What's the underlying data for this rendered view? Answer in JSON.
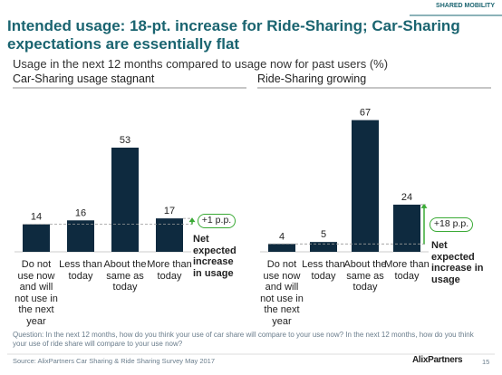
{
  "header": {
    "section": "SHARED MOBILITY",
    "title": "Intended usage: 18-pt. increase for Ride-Sharing; Car-Sharing expectations are essentially flat",
    "subtitle": "Usage in the next 12 months compared to usage now for past users (%)"
  },
  "chart_data": [
    {
      "type": "bar",
      "title": "Car-Sharing usage stagnant",
      "categories": [
        "Do not use now and will not use in the next year",
        "Less than today",
        "About the same as today",
        "More than today"
      ],
      "values": [
        14,
        16,
        53,
        17
      ],
      "color": "#0e2a3f",
      "annotations": {
        "change": "+1 p.p.",
        "note": "Net expected increase in usage"
      }
    },
    {
      "type": "bar",
      "title": "Ride-Sharing growing",
      "categories": [
        "Do not use now and will not use in the next year",
        "Less than today",
        "About the same as today",
        "More than today"
      ],
      "values": [
        4,
        5,
        67,
        24
      ],
      "color": "#0e2a3f",
      "annotations": {
        "change": "+18 p.p.",
        "note": "Net expected increase in usage"
      }
    }
  ],
  "footer": {
    "question": "Question: In the next 12 months, how do you think your use of car share will compare to your use now? In the next 12 months, how do you think your use of ride share will compare to your use now?",
    "source": "Source: AlixPartners Car Sharing & Ride Sharing Survey May 2017",
    "logo": "AlixPartners",
    "page": 15
  }
}
